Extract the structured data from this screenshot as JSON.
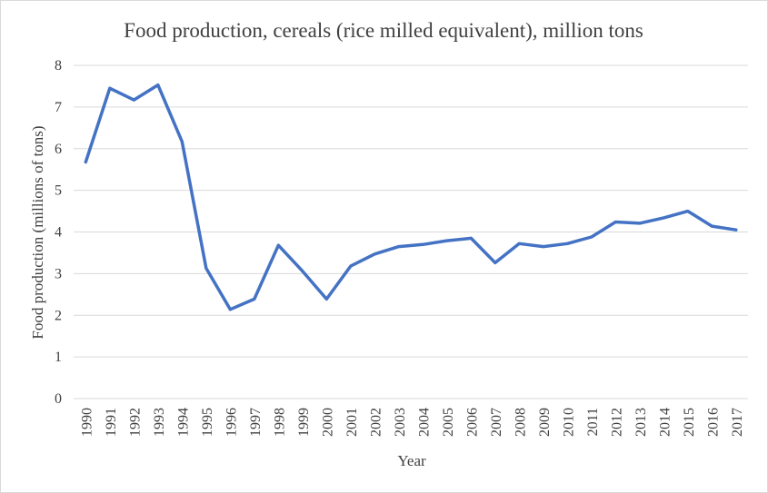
{
  "chart_data": {
    "type": "line",
    "title": "Food production, cereals (rice milled equivalent), million tons",
    "xlabel": "Year",
    "ylabel": "Food production (millions of tons)",
    "ylim": [
      0,
      8
    ],
    "yticks": [
      "0",
      "1",
      "2",
      "3",
      "4",
      "5",
      "6",
      "7",
      "8"
    ],
    "grid": true,
    "legend": "none",
    "categories": [
      "1990",
      "1991",
      "1992",
      "1993",
      "1994",
      "1995",
      "1996",
      "1997",
      "1998",
      "1999",
      "2000",
      "2001",
      "2002",
      "2003",
      "2004",
      "2005",
      "2006",
      "2007",
      "2008",
      "2009",
      "2010",
      "2011",
      "2012",
      "2013",
      "2014",
      "2015",
      "2016",
      "2017"
    ],
    "series": [
      {
        "color": "#4472c4",
        "values": [
          5.68,
          7.45,
          7.17,
          7.53,
          6.17,
          3.13,
          2.14,
          2.39,
          3.68,
          3.06,
          2.39,
          3.18,
          3.47,
          3.65,
          3.7,
          3.79,
          3.85,
          3.26,
          3.72,
          3.65,
          3.72,
          3.88,
          4.24,
          4.21,
          4.34,
          4.5,
          4.14,
          4.05
        ]
      }
    ]
  }
}
